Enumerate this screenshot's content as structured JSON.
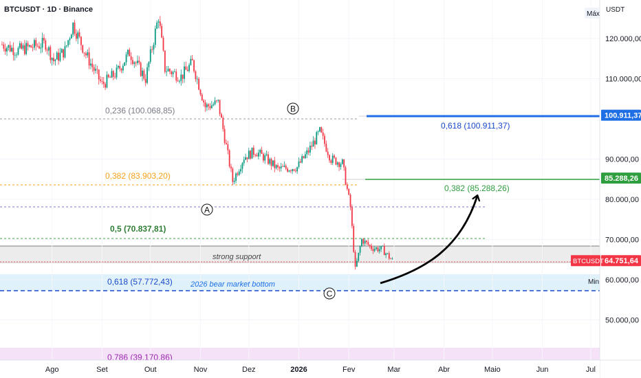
{
  "header": {
    "symbol_title": "BTCUSDT · 1D · Binance"
  },
  "price_axis": {
    "currency": "USDT",
    "max_label": "Máx",
    "min_label": "Min",
    "ticks": [
      {
        "value": 120000,
        "label": "120.000,00"
      },
      {
        "value": 110000,
        "label": "110.000,00"
      },
      {
        "value": 90000,
        "label": "90.000,00"
      },
      {
        "value": 80000,
        "label": "80.000,00"
      },
      {
        "value": 70000,
        "label": "70.000,00"
      },
      {
        "value": 60000,
        "label": "60.000,00"
      },
      {
        "value": 50000,
        "label": "50.000,00"
      }
    ],
    "badges": [
      {
        "value": 100911.37,
        "label": "100.911,37",
        "color": "#1e6fe6"
      },
      {
        "value": 85288.26,
        "label": "85.288,26",
        "color": "#2e9e3e"
      },
      {
        "value": 64751.64,
        "label": "64.751,64",
        "color": "#f23645",
        "symbol": "BTCUSDT"
      }
    ]
  },
  "time_axis": {
    "labels": [
      {
        "label": "Ago",
        "bold": false
      },
      {
        "label": "Set",
        "bold": false
      },
      {
        "label": "Out",
        "bold": false
      },
      {
        "label": "Nov",
        "bold": false
      },
      {
        "label": "Dez",
        "bold": false
      },
      {
        "label": "2026",
        "bold": true
      },
      {
        "label": "Fev",
        "bold": false
      },
      {
        "label": "Mar",
        "bold": false
      },
      {
        "label": "Abr",
        "bold": false
      },
      {
        "label": "Maio",
        "bold": false
      },
      {
        "label": "Jun",
        "bold": false
      },
      {
        "label": "Jul",
        "bold": false
      }
    ]
  },
  "fib_levels": [
    {
      "ratio": "0,236",
      "value": 100068.85,
      "label": "0,236 (100.068,85)",
      "color": "#787b86"
    },
    {
      "ratio": "0,382",
      "value": 83903.2,
      "label": "0,382 (83.903,20)",
      "color": "#f7a21b"
    },
    {
      "ratio": "0,5",
      "value": 70837.81,
      "label": "0,5 (70.837,81)",
      "color": "#2e7d32"
    },
    {
      "ratio": "0,618",
      "value": 57772.43,
      "label": "0,618 (57.772,43)",
      "color": "#1848cc"
    },
    {
      "ratio": "0,786",
      "value": 39170.86,
      "label": "0,786 (39.170,86)",
      "color": "#9c27b0"
    }
  ],
  "targets": [
    {
      "value": 100911.37,
      "label": "0,618 (100.911,37)",
      "color": "#1e6fe6"
    },
    {
      "value": 85288.26,
      "label": "0,382 (85.288,26)",
      "color": "#2e9e3e"
    }
  ],
  "annotations": {
    "strong_support": "strong support",
    "bear_bottom": "2026 bear market bottom",
    "wave_a": "A",
    "wave_b": "B",
    "wave_c": "C"
  },
  "colors": {
    "up": "#089981",
    "down": "#f23645",
    "grid": "#f0f3fa"
  },
  "chart_data": {
    "type": "candlestick",
    "title": "BTCUSDT · 1D · Binance",
    "ylim": [
      39000,
      128000
    ],
    "y_ticks": [
      50000,
      60000,
      70000,
      80000,
      90000,
      110000,
      120000
    ],
    "x_range": [
      "2025-07-01",
      "2026-07-20"
    ],
    "x_ticks": [
      "Ago",
      "Set",
      "Out",
      "Nov",
      "Dez",
      "2026",
      "Fev",
      "Mar",
      "Abr",
      "Maio",
      "Jun",
      "Jul"
    ],
    "close_path": [
      {
        "date": "2025-07-01",
        "close": 118500
      },
      {
        "date": "2025-07-10",
        "close": 117000
      },
      {
        "date": "2025-07-20",
        "close": 118000
      },
      {
        "date": "2025-07-28",
        "close": 118800
      },
      {
        "date": "2025-08-02",
        "close": 114500
      },
      {
        "date": "2025-08-09",
        "close": 117000
      },
      {
        "date": "2025-08-14",
        "close": 123500
      },
      {
        "date": "2025-08-22",
        "close": 116000
      },
      {
        "date": "2025-09-01",
        "close": 108500
      },
      {
        "date": "2025-09-10",
        "close": 111500
      },
      {
        "date": "2025-09-18",
        "close": 116500
      },
      {
        "date": "2025-09-28",
        "close": 110000
      },
      {
        "date": "2025-10-06",
        "close": 125500
      },
      {
        "date": "2025-10-10",
        "close": 112500
      },
      {
        "date": "2025-10-20",
        "close": 110500
      },
      {
        "date": "2025-10-27",
        "close": 114000
      },
      {
        "date": "2025-11-04",
        "close": 103000
      },
      {
        "date": "2025-11-12",
        "close": 104000
      },
      {
        "date": "2025-11-21",
        "close": 84500
      },
      {
        "date": "2025-11-28",
        "close": 90500
      },
      {
        "date": "2025-12-05",
        "close": 92000
      },
      {
        "date": "2025-12-12",
        "close": 90000
      },
      {
        "date": "2025-12-19",
        "close": 87500
      },
      {
        "date": "2025-12-31",
        "close": 88000
      },
      {
        "date": "2026-01-07",
        "close": 92000
      },
      {
        "date": "2026-01-14",
        "close": 96800
      },
      {
        "date": "2026-01-21",
        "close": 90000
      },
      {
        "date": "2026-01-28",
        "close": 89000
      },
      {
        "date": "2026-02-02",
        "close": 78000
      },
      {
        "date": "2026-02-05",
        "close": 62500
      },
      {
        "date": "2026-02-09",
        "close": 70000
      },
      {
        "date": "2026-02-15",
        "close": 68000
      },
      {
        "date": "2026-02-22",
        "close": 67500
      },
      {
        "date": "2026-02-28",
        "close": 64751.64
      }
    ],
    "last_price": 64751.64,
    "support_zone": {
      "low": 65000,
      "high": 68800
    },
    "bear_bottom_zone": {
      "low": 57800,
      "high": 61500
    }
  }
}
